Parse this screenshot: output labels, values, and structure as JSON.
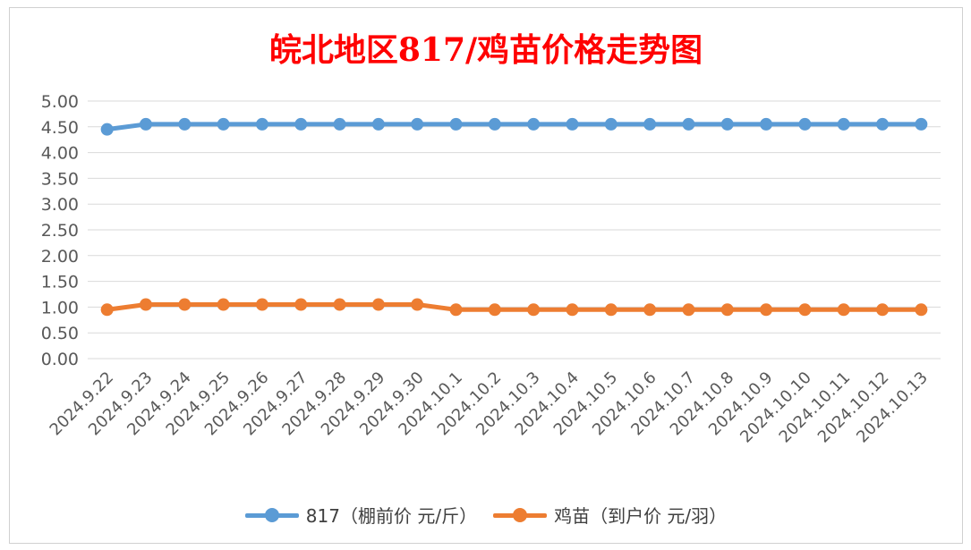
{
  "chart_data": {
    "type": "line",
    "title": "皖北地区817/鸡苗价格走势图",
    "categories": [
      "2024.9.22",
      "2024.9.23",
      "2024.9.24",
      "2024.9.25",
      "2024.9.26",
      "2024.9.27",
      "2024.9.28",
      "2024.9.29",
      "2024.9.30",
      "2024.10.1",
      "2024.10.2",
      "2024.10.3",
      "2024.10.4",
      "2024.10.5",
      "2024.10.6",
      "2024.10.7",
      "2024.10.8",
      "2024.10.9",
      "2024.10.10",
      "2024.10.11",
      "2024.10.12",
      "2024.10.13"
    ],
    "series": [
      {
        "name": "817（棚前价 元/斤）",
        "color": "#5b9bd5",
        "values": [
          4.45,
          4.55,
          4.55,
          4.55,
          4.55,
          4.55,
          4.55,
          4.55,
          4.55,
          4.55,
          4.55,
          4.55,
          4.55,
          4.55,
          4.55,
          4.55,
          4.55,
          4.55,
          4.55,
          4.55,
          4.55,
          4.55
        ]
      },
      {
        "name": "鸡苗（到户价 元/羽）",
        "color": "#ed7d31",
        "values": [
          0.95,
          1.05,
          1.05,
          1.05,
          1.05,
          1.05,
          1.05,
          1.05,
          1.05,
          0.95,
          0.95,
          0.95,
          0.95,
          0.95,
          0.95,
          0.95,
          0.95,
          0.95,
          0.95,
          0.95,
          0.95,
          0.95
        ]
      }
    ],
    "y_ticks": [
      "0.00",
      "0.50",
      "1.00",
      "1.50",
      "2.00",
      "2.50",
      "3.00",
      "3.50",
      "4.00",
      "4.50",
      "5.00"
    ],
    "ylim": [
      0,
      5
    ],
    "grid": true,
    "legend": "bottom",
    "title_color": "#ff0000",
    "grid_color": "#d9d9d9",
    "text_color": "#595959"
  }
}
